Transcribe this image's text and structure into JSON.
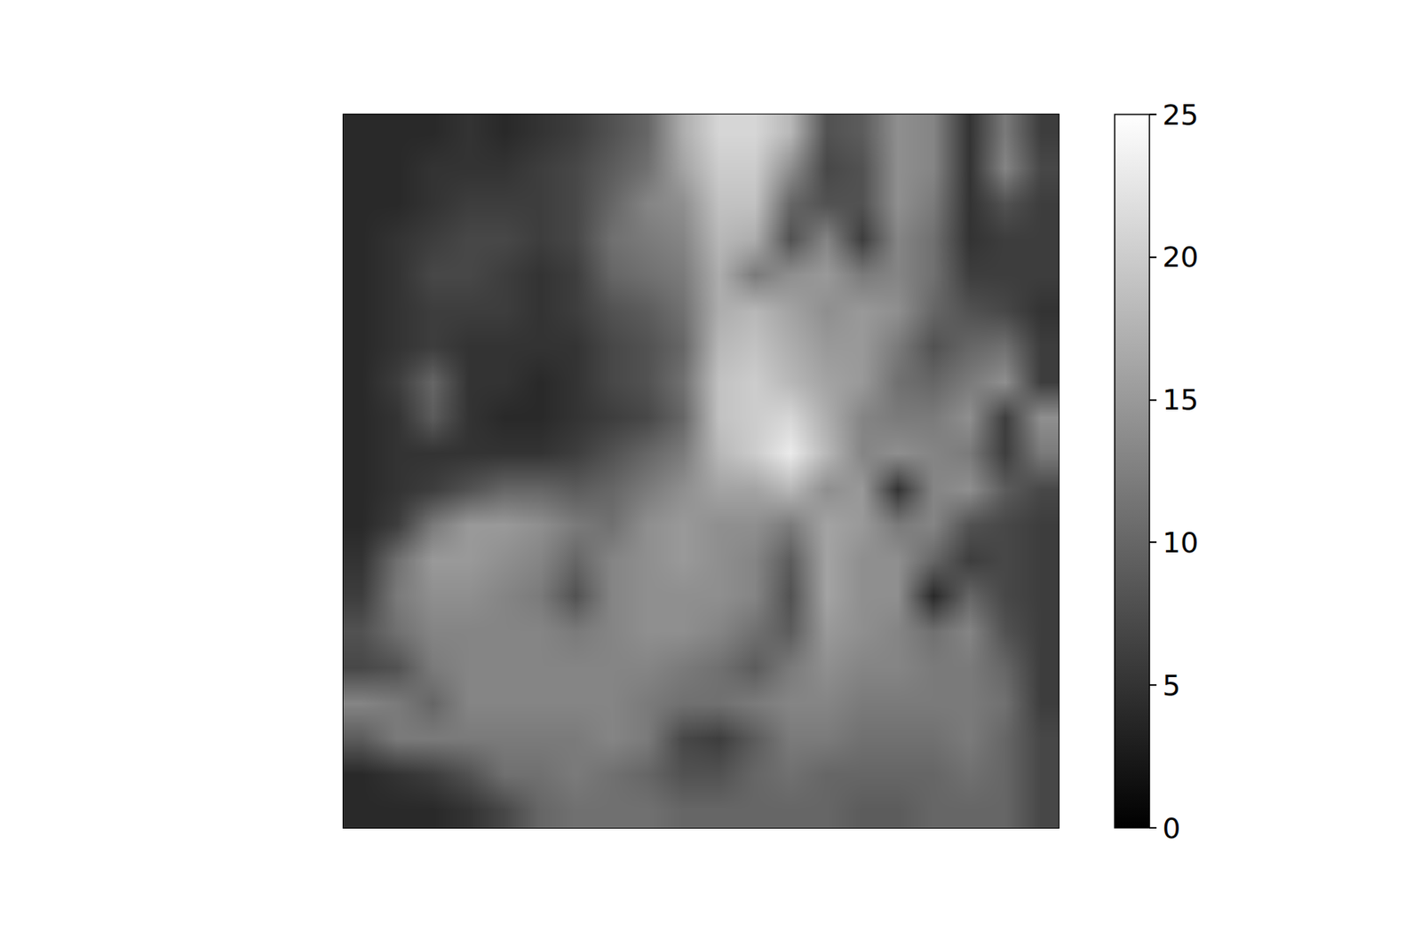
{
  "chart_data": {
    "type": "heatmap",
    "color": "gray",
    "tick_labels": false,
    "xlim": [
      -0.5,
      19.5
    ],
    "ylim": [
      19.5,
      -0.5
    ],
    "color_range": [
      0,
      25
    ],
    "color_ticks": [
      0,
      5,
      10,
      15,
      20,
      25
    ],
    "cells": [
      [
        4,
        4,
        4,
        5,
        4,
        5,
        6,
        8,
        10,
        17,
        21,
        21,
        18,
        8,
        9,
        14,
        13,
        5,
        12,
        6
      ],
      [
        4,
        4,
        5,
        5,
        5,
        6,
        7,
        9,
        11,
        16,
        20,
        20,
        14,
        7,
        8,
        14,
        13,
        5,
        13,
        7
      ],
      [
        4,
        4,
        5,
        6,
        6,
        6,
        7,
        10,
        13,
        14,
        19,
        19,
        10,
        8,
        8,
        14,
        12,
        5,
        8,
        6
      ],
      [
        4,
        5,
        6,
        7,
        7,
        6,
        7,
        11,
        12,
        13,
        18,
        17,
        8,
        13,
        6,
        13,
        11,
        5,
        6,
        6
      ],
      [
        4,
        5,
        7,
        7,
        6,
        5,
        6,
        10,
        11,
        12,
        17,
        12,
        14,
        15,
        12,
        13,
        11,
        6,
        6,
        6
      ],
      [
        4,
        5,
        6,
        6,
        6,
        5,
        6,
        8,
        9,
        11,
        17,
        18,
        16,
        14,
        15,
        14,
        10,
        8,
        7,
        5
      ],
      [
        4,
        5,
        6,
        5,
        5,
        5,
        5,
        7,
        8,
        10,
        18,
        19,
        17,
        15,
        15,
        12,
        8,
        10,
        11,
        6
      ],
      [
        4,
        6,
        10,
        5,
        5,
        4,
        5,
        7,
        8,
        11,
        19,
        20,
        18,
        16,
        15,
        11,
        10,
        12,
        14,
        6
      ],
      [
        4,
        5,
        9,
        5,
        4,
        4,
        5,
        6,
        7,
        10,
        19,
        20,
        21,
        17,
        13,
        12,
        12,
        14,
        6,
        14
      ],
      [
        4,
        5,
        5,
        5,
        5,
        5,
        6,
        8,
        10,
        12,
        18,
        20,
        23,
        18,
        13,
        14,
        13,
        12,
        6,
        12
      ],
      [
        4,
        5,
        6,
        8,
        10,
        10,
        9,
        10,
        12,
        14,
        16,
        16,
        18,
        14,
        15,
        5,
        13,
        14,
        9,
        7
      ],
      [
        4,
        6,
        12,
        15,
        15,
        14,
        12,
        11,
        14,
        15,
        14,
        14,
        12,
        16,
        15,
        12,
        13,
        8,
        7,
        6
      ],
      [
        5,
        11,
        15,
        15,
        14,
        13,
        10,
        13,
        14,
        15,
        14,
        13,
        9,
        16,
        14,
        14,
        10,
        6,
        7,
        6
      ],
      [
        6,
        12,
        14,
        14,
        13,
        12,
        8,
        13,
        14,
        14,
        14,
        13,
        8,
        16,
        14,
        14,
        4,
        10,
        7,
        6
      ],
      [
        8,
        11,
        13,
        13,
        13,
        13,
        12,
        13,
        14,
        14,
        13,
        11,
        9,
        15,
        14,
        13,
        11,
        13,
        8,
        6
      ],
      [
        7,
        8,
        12,
        13,
        13,
        13,
        13,
        13,
        13,
        12,
        11,
        9,
        12,
        14,
        13,
        13,
        12,
        12,
        10,
        6
      ],
      [
        13,
        12,
        10,
        13,
        13,
        13,
        13,
        13,
        12,
        11,
        11,
        12,
        13,
        13,
        12,
        12,
        12,
        12,
        11,
        6
      ],
      [
        9,
        12,
        12,
        12,
        12,
        12,
        12,
        13,
        12,
        7,
        6,
        9,
        12,
        12,
        11,
        11,
        11,
        12,
        10,
        7
      ],
      [
        4,
        5,
        6,
        8,
        11,
        11,
        12,
        11,
        10,
        8,
        8,
        10,
        11,
        10,
        10,
        10,
        10,
        11,
        10,
        7
      ],
      [
        4,
        4,
        4,
        5,
        7,
        10,
        11,
        11,
        11,
        10,
        10,
        10,
        10,
        10,
        9,
        9,
        10,
        10,
        10,
        7
      ]
    ]
  }
}
